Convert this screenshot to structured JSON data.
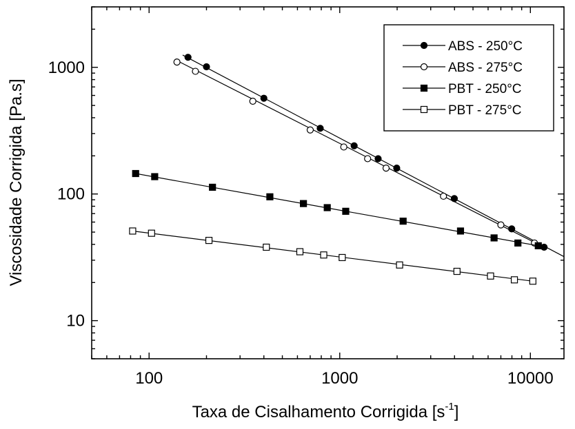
{
  "chart_data": {
    "type": "line",
    "title": "",
    "xlabel": "Taxa de Cisalhamento Corrigida [s",
    "xlabel_exponent": "-1",
    "xlabel_close": "]",
    "ylabel": "Viscosidade Corrigida [Pa.s]",
    "xscale": "log",
    "yscale": "log",
    "xlim": [
      50,
      15000
    ],
    "ylim": [
      5,
      3000
    ],
    "x_ticks": [
      {
        "value": 100,
        "label": "100"
      },
      {
        "value": 1000,
        "label": "1000"
      },
      {
        "value": 10000,
        "label": "10000"
      }
    ],
    "y_ticks": [
      {
        "value": 10,
        "label": "10"
      },
      {
        "value": 100,
        "label": "100"
      },
      {
        "value": 1000,
        "label": "1000"
      }
    ],
    "grid": false,
    "legend_position": "top-right",
    "series": [
      {
        "name": "ABS - 250°C",
        "marker": "circle-filled",
        "x": [
          160,
          200,
          400,
          790,
          1190,
          1590,
          1990,
          3990,
          7980,
          11800
        ],
        "y": [
          1200,
          1010,
          570,
          330,
          240,
          190,
          160,
          92,
          53,
          38
        ],
        "fit": [
          [
            150,
            1250
          ],
          [
            15000,
            32
          ]
        ]
      },
      {
        "name": "ABS - 275°C",
        "marker": "circle-open",
        "x": [
          140,
          175,
          350,
          700,
          1050,
          1400,
          1750,
          3500,
          7000,
          10500
        ],
        "y": [
          1100,
          930,
          540,
          320,
          235,
          190,
          160,
          96,
          57,
          41
        ],
        "fit": [
          [
            140,
            1130
          ],
          [
            11000,
            40
          ]
        ]
      },
      {
        "name": "PBT - 250°C",
        "marker": "square-filled",
        "x": [
          85,
          107,
          215,
          430,
          645,
          860,
          1075,
          2150,
          4300,
          6450,
          8600,
          11000
        ],
        "y": [
          145,
          137,
          113,
          95,
          84,
          78,
          73,
          61,
          51,
          45,
          41,
          39
        ],
        "fit": [
          [
            85,
            145
          ],
          [
            11000,
            39
          ]
        ]
      },
      {
        "name": "PBT - 275°C",
        "marker": "square-open",
        "x": [
          82,
          103,
          206,
          412,
          618,
          824,
          1030,
          2060,
          4120,
          6180,
          8240,
          10300
        ],
        "y": [
          51,
          49,
          43,
          38,
          35,
          33,
          31.5,
          27.5,
          24.5,
          22.5,
          21,
          20.5
        ],
        "fit": [
          [
            82,
            51
          ],
          [
            10300,
            20.5
          ]
        ]
      }
    ]
  }
}
